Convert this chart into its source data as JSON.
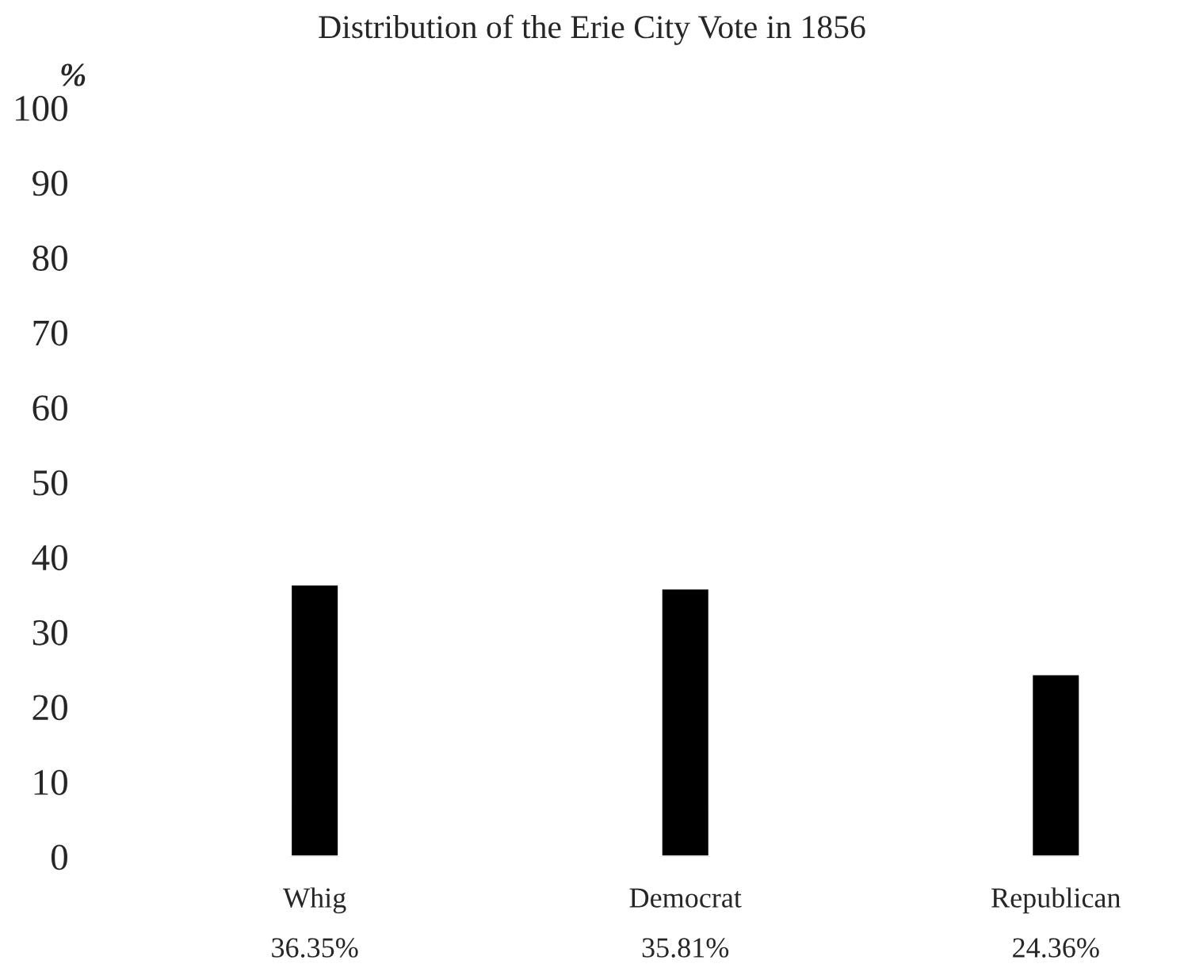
{
  "chart_data": {
    "type": "bar",
    "title": "Distribution of the Erie City Vote in 1856",
    "ylabel": "%",
    "categories": [
      "Whig",
      "Democrat",
      "Republican"
    ],
    "values": [
      36.35,
      35.81,
      24.36
    ],
    "value_labels": [
      "36.35%",
      "35.81%",
      "24.36%"
    ],
    "color": "#000000",
    "ylim": [
      0,
      100
    ],
    "yticks": [
      0,
      10,
      20,
      30,
      40,
      50,
      60,
      70,
      80,
      90,
      100
    ],
    "grid": false,
    "legend": false
  }
}
